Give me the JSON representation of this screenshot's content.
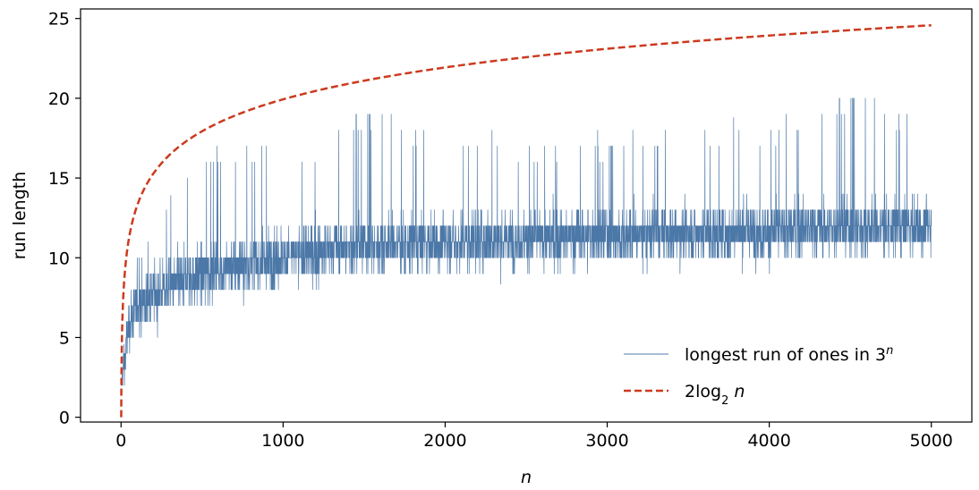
{
  "chart_data": {
    "type": "line",
    "xlabel": "n",
    "ylabel": "run length",
    "xlim": [
      -250,
      5250
    ],
    "ylim": [
      -0.3,
      25.6
    ],
    "xticks": [
      0,
      1000,
      2000,
      3000,
      4000,
      5000
    ],
    "yticks": [
      0,
      5,
      10,
      15,
      20,
      25
    ],
    "x_tick_labels": [
      "0",
      "1000",
      "2000",
      "3000",
      "4000",
      "5000"
    ],
    "y_tick_labels": [
      "0",
      "5",
      "10",
      "15",
      "20",
      "25"
    ],
    "legend_position": "lower-right",
    "series": [
      {
        "name": "longest run of ones in 3^n",
        "color": "#4c78a8",
        "style": "solid",
        "x_range": [
          1,
          5000
        ],
        "noisy_trend_points": [
          {
            "x": 1,
            "mean": 2,
            "min": 1,
            "max": 2
          },
          {
            "x": 50,
            "mean": 6,
            "min": 3,
            "max": 9
          },
          {
            "x": 100,
            "mean": 7,
            "min": 4,
            "max": 10
          },
          {
            "x": 250,
            "mean": 8,
            "min": 5,
            "max": 13
          },
          {
            "x": 500,
            "mean": 9,
            "min": 6,
            "max": 17
          },
          {
            "x": 1000,
            "mean": 10,
            "min": 7,
            "max": 17
          },
          {
            "x": 1500,
            "mean": 10.8,
            "min": 8,
            "max": 20
          },
          {
            "x": 2000,
            "mean": 11,
            "min": 8,
            "max": 18
          },
          {
            "x": 3000,
            "mean": 11.4,
            "min": 9,
            "max": 18
          },
          {
            "x": 4000,
            "mean": 11.7,
            "min": 9,
            "max": 19
          },
          {
            "x": 4540,
            "mean": 11.9,
            "min": 9,
            "max": 21
          },
          {
            "x": 5000,
            "mean": 12,
            "min": 10,
            "max": 19
          }
        ]
      },
      {
        "name": "2log₂ n",
        "color": "#cc3a1e",
        "style": "dashed",
        "formula": "2*log2(n)",
        "x_range": [
          1,
          5000
        ],
        "sample_values": [
          {
            "x": 1,
            "y": 0
          },
          {
            "x": 10,
            "y": 6.64
          },
          {
            "x": 100,
            "y": 13.29
          },
          {
            "x": 250,
            "y": 15.93
          },
          {
            "x": 500,
            "y": 17.93
          },
          {
            "x": 1000,
            "y": 19.93
          },
          {
            "x": 2000,
            "y": 21.93
          },
          {
            "x": 3000,
            "y": 23.1
          },
          {
            "x": 4000,
            "y": 23.93
          },
          {
            "x": 5000,
            "y": 24.58
          }
        ]
      }
    ]
  }
}
